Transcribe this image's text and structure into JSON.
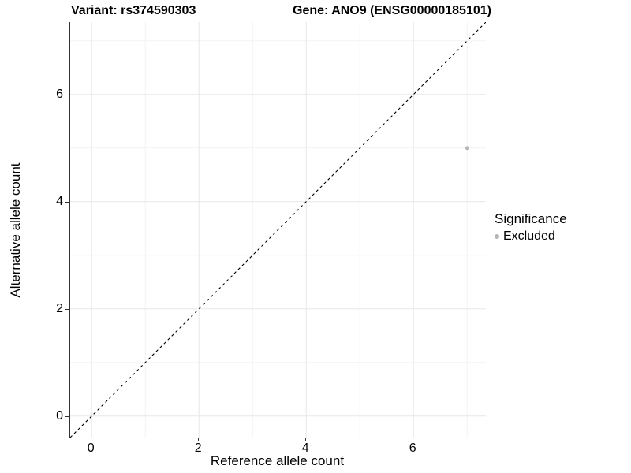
{
  "header": {
    "variant_title": "Variant: rs374590303",
    "gene_title": "Gene: ANO9 (ENSG00000185101)"
  },
  "colors": {
    "background": "#ffffff",
    "axis_line": "#333333",
    "grid_major": "#e7e7e7",
    "grid_minor": "#f3f3f3",
    "identity_line": "#000000",
    "excluded_point": "#b5b5b5",
    "text": "#000000"
  },
  "chart_data": {
    "type": "scatter",
    "title": "Variant: rs374590303    Gene: ANO9 (ENSG00000185101)",
    "xlabel": "Reference allele count",
    "ylabel": "Alternative allele count",
    "xlim": [
      -0.4,
      7.35
    ],
    "ylim": [
      -0.4,
      7.35
    ],
    "x_ticks": [
      0,
      2,
      4,
      6
    ],
    "y_ticks": [
      0,
      2,
      4,
      6
    ],
    "x_minor_ticks": [
      1,
      3,
      5,
      7
    ],
    "y_minor_ticks": [
      1,
      3,
      5,
      7
    ],
    "grid": "major+minor",
    "points": [
      {
        "x": 7,
        "y": 5,
        "series": "Excluded"
      }
    ],
    "series": [
      {
        "name": "Excluded",
        "color": "#b5b5b5",
        "point_radius": 2.4
      }
    ],
    "identity_line": {
      "slope": 1,
      "intercept": 0,
      "style": "dashed",
      "color": "#000000"
    },
    "legend": {
      "position": "right",
      "title": "Significance",
      "entries": [
        {
          "label": "Excluded",
          "color": "#b5b5b5"
        }
      ]
    }
  }
}
